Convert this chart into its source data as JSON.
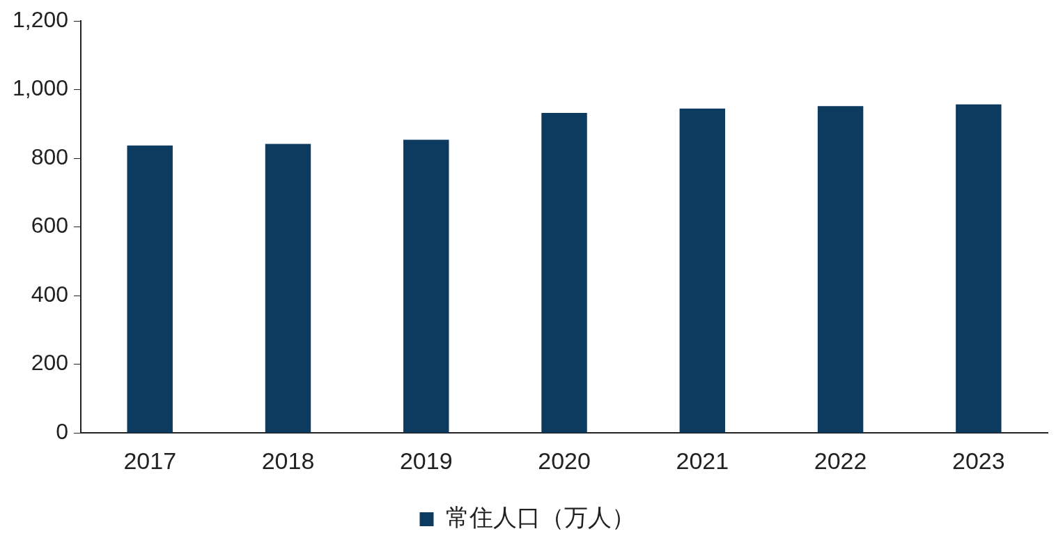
{
  "chart_data": {
    "type": "bar",
    "categories": [
      "2017",
      "2018",
      "2019",
      "2020",
      "2021",
      "2022",
      "2023"
    ],
    "series": [
      {
        "name": "常住人口（万人）",
        "color": "#0d3a5f",
        "values": [
          837,
          842,
          854,
          932,
          945,
          952,
          957
        ]
      }
    ],
    "ylim": [
      0,
      1200
    ],
    "yticks": [
      {
        "value": 0,
        "label": "0"
      },
      {
        "value": 200,
        "label": "200"
      },
      {
        "value": 400,
        "label": "400"
      },
      {
        "value": 600,
        "label": "600"
      },
      {
        "value": 800,
        "label": "800"
      },
      {
        "value": 1000,
        "label": "1,000"
      },
      {
        "value": 1200,
        "label": "1,200"
      }
    ],
    "grid": false,
    "legend": "bottom"
  }
}
